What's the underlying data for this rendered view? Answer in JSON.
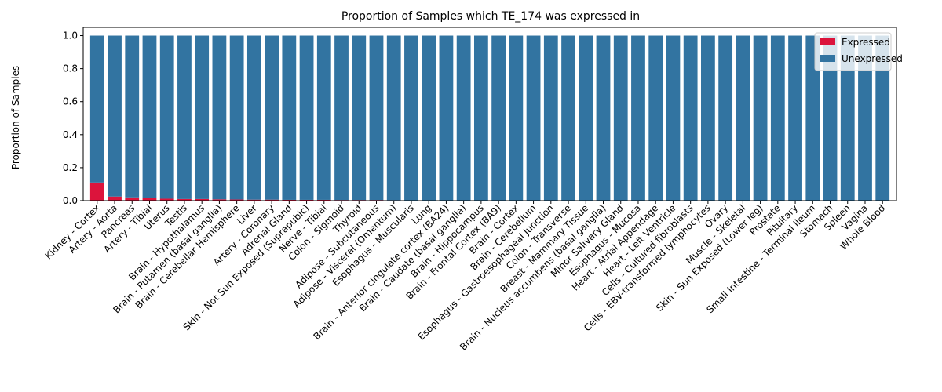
{
  "chart_data": {
    "type": "bar",
    "stacked": true,
    "title": "Proportion of Samples which TE_174 was expressed in",
    "xlabel": "",
    "ylabel": "Proportion of Samples",
    "ylim": [
      0,
      1.05
    ],
    "yticks": [
      "0.0",
      "0.2",
      "0.4",
      "0.6",
      "0.8",
      "1.0"
    ],
    "grid": false,
    "legend_position": "top-right",
    "categories": [
      "Kidney - Cortex",
      "Artery - Aorta",
      "Pancreas",
      "Artery - Tibial",
      "Uterus",
      "Testis",
      "Brain - Hypothalamus",
      "Brain - Putamen (basal ganglia)",
      "Brain - Cerebellar Hemisphere",
      "Liver",
      "Artery - Coronary",
      "Adrenal Gland",
      "Skin - Not Sun Exposed (Suprapubic)",
      "Nerve - Tibial",
      "Colon - Sigmoid",
      "Thyroid",
      "Adipose - Subcutaneous",
      "Adipose - Visceral (Omentum)",
      "Esophagus - Muscularis",
      "Lung",
      "Brain - Anterior cingulate cortex (BA24)",
      "Brain - Caudate (basal ganglia)",
      "Brain - Hippocampus",
      "Brain - Frontal Cortex (BA9)",
      "Brain - Cortex",
      "Brain - Cerebellum",
      "Esophagus - Gastroesophageal Junction",
      "Colon - Transverse",
      "Breast - Mammary Tissue",
      "Brain - Nucleus accumbens (basal ganglia)",
      "Minor Salivary Gland",
      "Esophagus - Mucosa",
      "Heart - Atrial Appendage",
      "Heart - Left Ventricle",
      "Cells - Cultured fibroblasts",
      "Cells - EBV-transformed lymphocytes",
      "Ovary",
      "Muscle - Skeletal",
      "Skin - Sun Exposed (Lower leg)",
      "Prostate",
      "Pituitary",
      "Small Intestine - Terminal Ileum",
      "Stomach",
      "Spleen",
      "Vagina",
      "Whole Blood"
    ],
    "series": [
      {
        "name": "Expressed",
        "color": "#dc143c",
        "values": [
          0.11,
          0.025,
          0.02,
          0.015,
          0.012,
          0.01,
          0.01,
          0.008,
          0.007,
          0.006,
          0.006,
          0.005,
          0.005,
          0.005,
          0.004,
          0.004,
          0.004,
          0.003,
          0,
          0,
          0,
          0,
          0,
          0,
          0,
          0,
          0,
          0,
          0,
          0,
          0,
          0,
          0,
          0,
          0,
          0,
          0,
          0,
          0,
          0,
          0,
          0,
          0,
          0,
          0,
          0
        ]
      },
      {
        "name": "Unexpressed",
        "color": "#3274a1",
        "values": [
          0.89,
          0.975,
          0.98,
          0.985,
          0.988,
          0.99,
          0.99,
          0.992,
          0.993,
          0.994,
          0.994,
          0.995,
          0.995,
          0.995,
          0.996,
          0.996,
          0.996,
          0.997,
          1,
          1,
          1,
          1,
          1,
          1,
          1,
          1,
          1,
          1,
          1,
          1,
          1,
          1,
          1,
          1,
          1,
          1,
          1,
          1,
          1,
          1,
          1,
          1,
          1,
          1,
          1,
          1
        ]
      }
    ]
  }
}
